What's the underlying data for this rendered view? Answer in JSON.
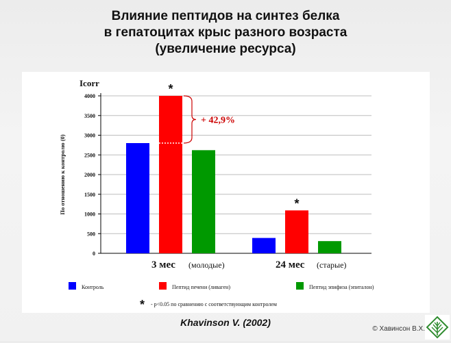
{
  "title": {
    "line1": "Влияние пептидов на синтез белка",
    "line2": "в гепатоцитах крыс разного возраста",
    "line3": "(увеличение ресурса)"
  },
  "citation": "Khavinson V. (2002)",
  "copyright": "© Хавинсон В.Х.",
  "logo_icon": "leaf-logo-icon",
  "chart_data": {
    "type": "bar",
    "title": "",
    "ylabel_top": "Icorr",
    "ylabel": "По отношению к контролю (0)",
    "ylim": [
      0,
      4000
    ],
    "yticks": [
      "0",
      "500",
      "1000",
      "1500",
      "2000",
      "2500",
      "3000",
      "3500",
      "4000"
    ],
    "grid": true,
    "groups": [
      {
        "label": "3 мес",
        "sublabel": "(молодые)"
      },
      {
        "label": "24 мес",
        "sublabel": "(старые)"
      }
    ],
    "series": [
      {
        "name": "Контроль",
        "color": "#0000ff",
        "values": [
          2800,
          390
        ]
      },
      {
        "name": "Пептид печени (ливаген)",
        "color": "#ff0000",
        "values": [
          4000,
          1090
        ]
      },
      {
        "name": "Пептид эпифиза (эпиталон)",
        "color": "#009900",
        "values": [
          2620,
          310
        ]
      }
    ],
    "significance_mark": "*",
    "significant_bars": [
      [
        1,
        0
      ],
      [
        1,
        1
      ]
    ],
    "annotation": "+ 42,9%",
    "annotation_color": "#cc0000",
    "footnote_mark": "*",
    "footnote": "- p<0.05 по сравнению с соответствующим контролем"
  }
}
